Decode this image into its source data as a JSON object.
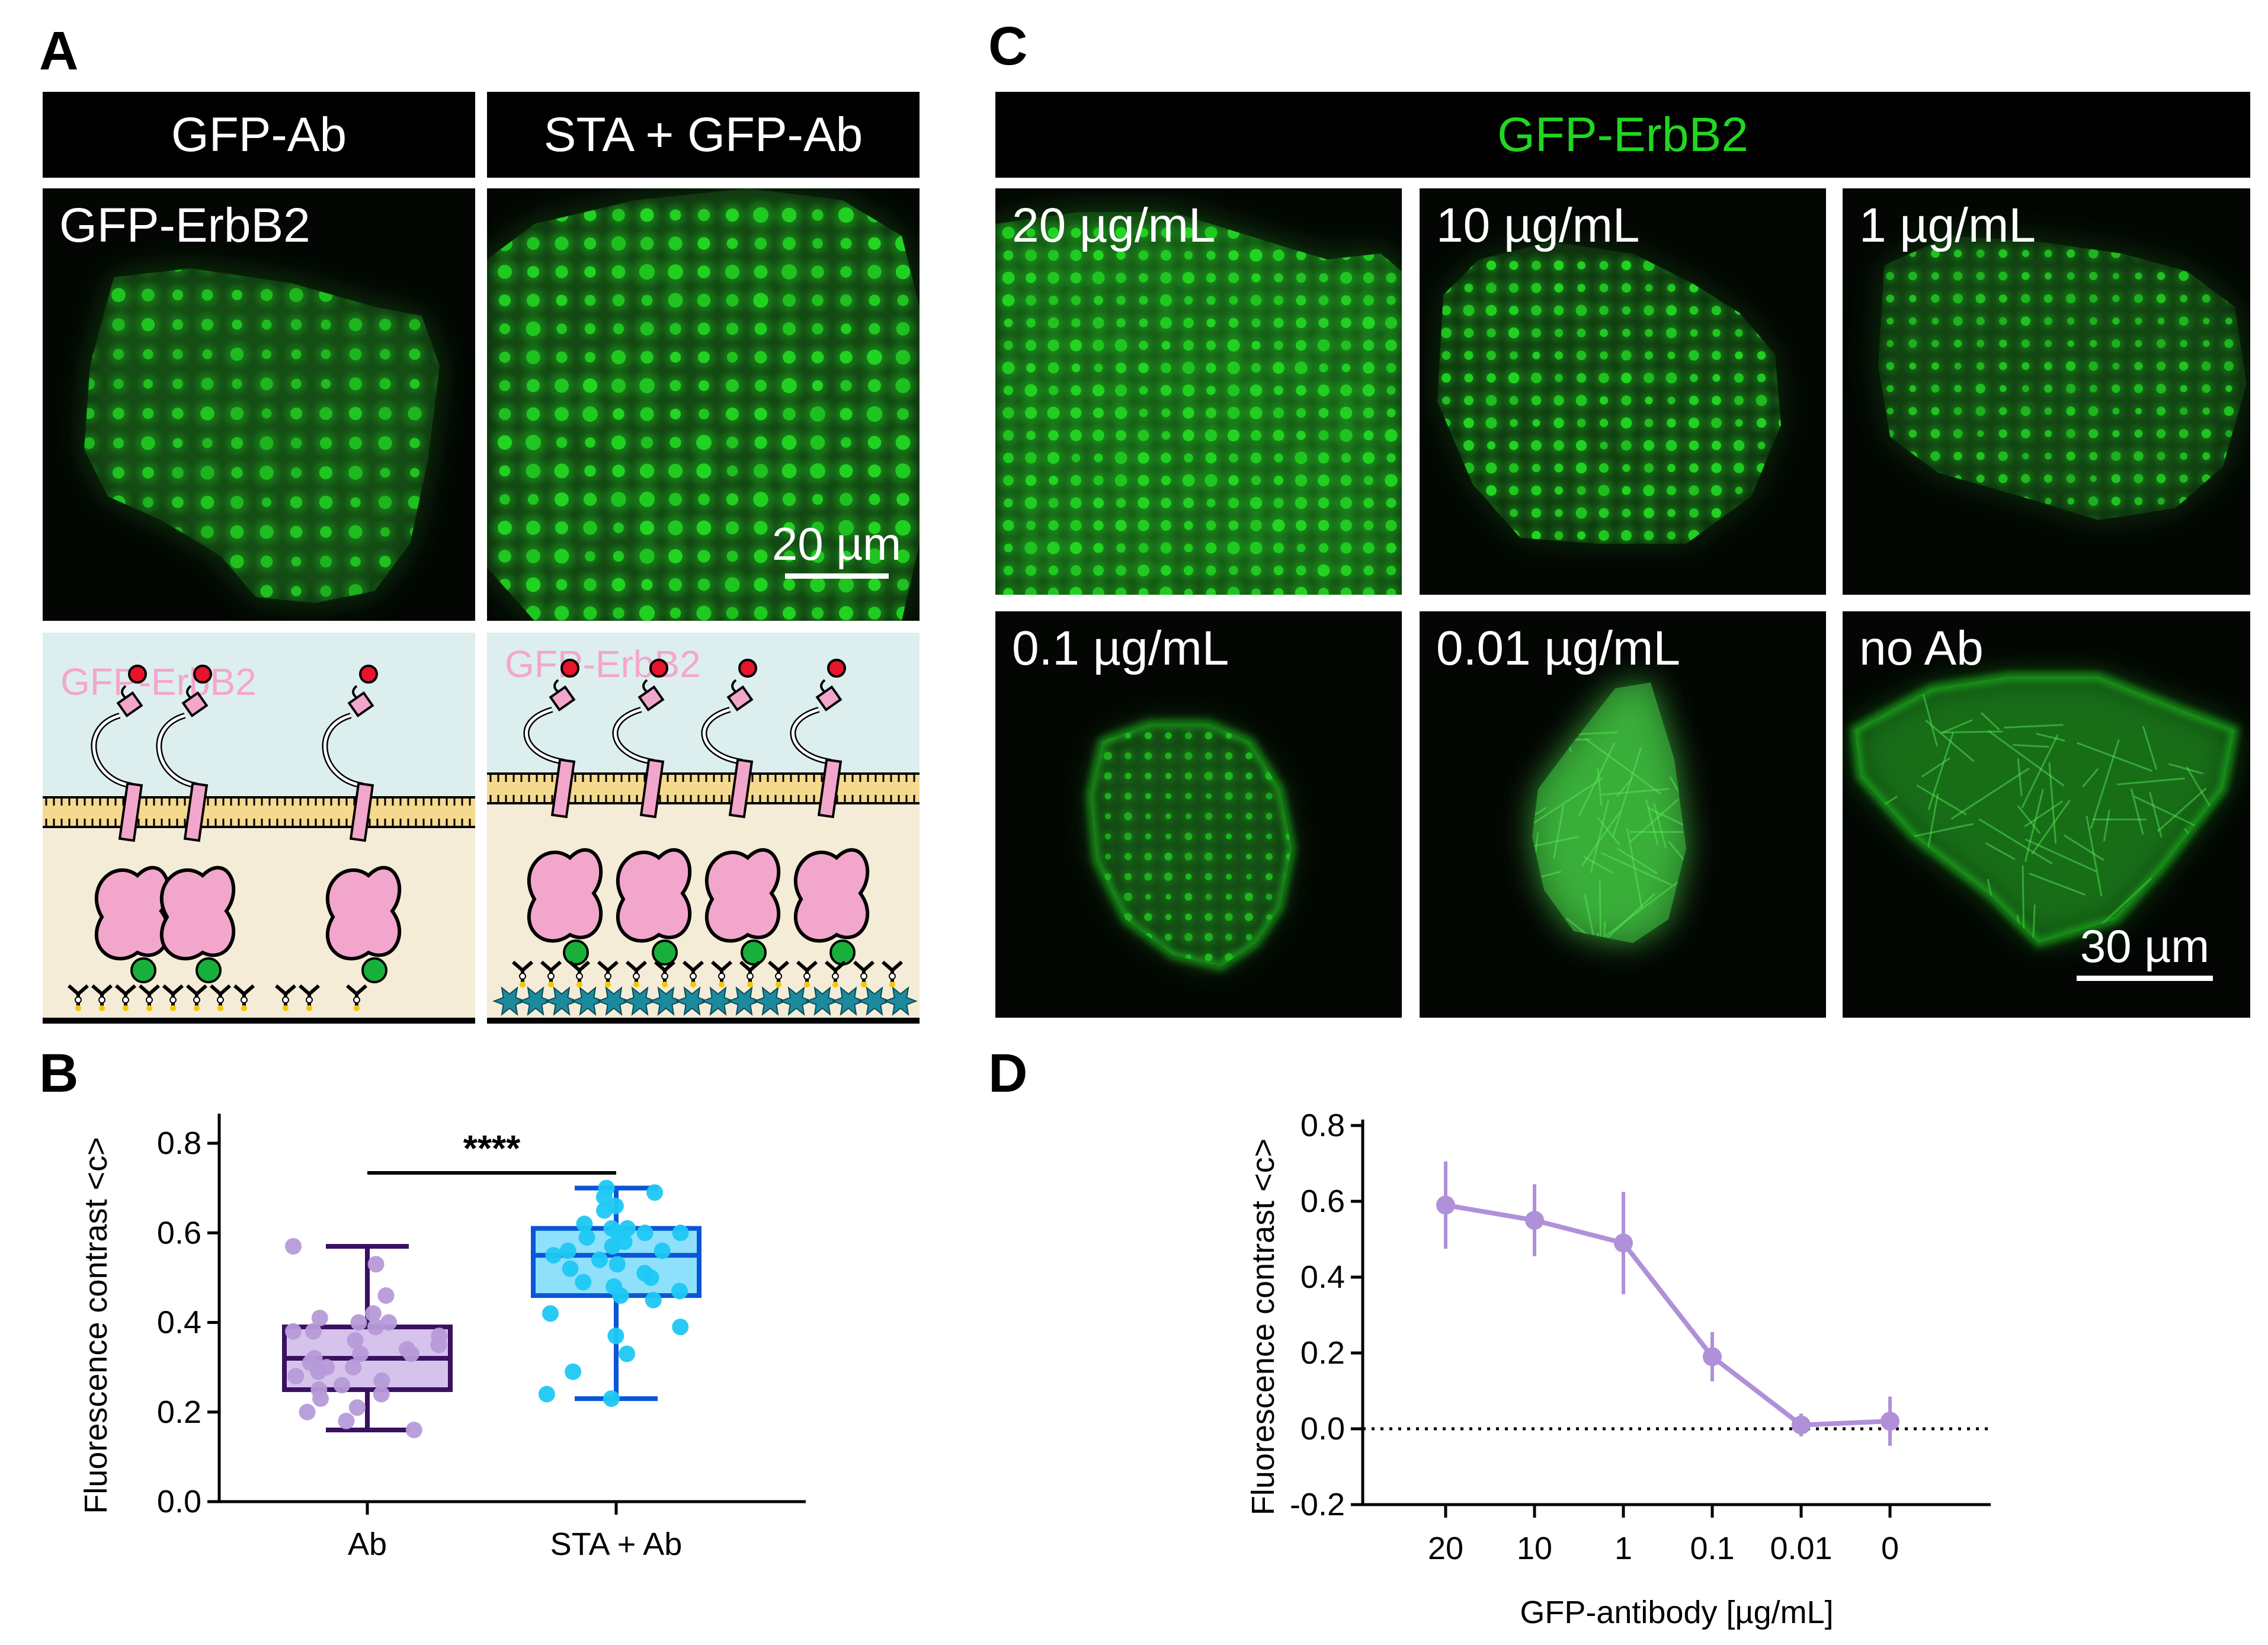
{
  "panels": {
    "a": {
      "letter": "A",
      "headers": [
        "GFP-Ab",
        "STA + GFP-Ab"
      ],
      "micro_label": "GFP-ErbB2",
      "scale_label": "20 µm",
      "schematic_label": "GFP-ErbB2"
    },
    "b": {
      "letter": "B"
    },
    "c": {
      "letter": "C",
      "header": "GFP-ErbB2",
      "tiles": [
        "20 µg/mL",
        "10 µg/mL",
        "1 µg/mL",
        "0.1 µg/mL",
        "0.01 µg/mL",
        "no Ab"
      ],
      "scale_label": "30 µm"
    },
    "d": {
      "letter": "D"
    }
  },
  "colors": {
    "green": "#22d622",
    "purple_light": "#b79ad9",
    "purple_dark": "#3a1060",
    "blue_light": "#1ec8f4",
    "blue_dark": "#0a56d6",
    "line_purple": "#b090d8"
  },
  "chart_data": [
    {
      "type": "box",
      "ylabel": "Fluorescence contrast <c>",
      "ylim": [
        0.0,
        0.8
      ],
      "yticks": [
        "0.0",
        "0.2",
        "0.4",
        "0.6",
        "0.8"
      ],
      "categories": [
        "Ab",
        "STA + Ab"
      ],
      "significance": "****",
      "boxes": [
        {
          "name": "Ab",
          "min": 0.16,
          "q1": 0.25,
          "median": 0.32,
          "q3": 0.39,
          "max": 0.57,
          "points": [
            0.57,
            0.53,
            0.46,
            0.42,
            0.41,
            0.4,
            0.4,
            0.39,
            0.38,
            0.38,
            0.37,
            0.36,
            0.35,
            0.34,
            0.33,
            0.33,
            0.32,
            0.31,
            0.3,
            0.3,
            0.29,
            0.28,
            0.27,
            0.26,
            0.25,
            0.24,
            0.23,
            0.21,
            0.2,
            0.18,
            0.16
          ]
        },
        {
          "name": "STA + Ab",
          "min": 0.23,
          "q1": 0.46,
          "median": 0.55,
          "q3": 0.61,
          "max": 0.7,
          "points": [
            0.7,
            0.69,
            0.68,
            0.66,
            0.65,
            0.62,
            0.61,
            0.61,
            0.6,
            0.6,
            0.6,
            0.59,
            0.58,
            0.57,
            0.56,
            0.56,
            0.55,
            0.54,
            0.53,
            0.52,
            0.51,
            0.5,
            0.49,
            0.48,
            0.47,
            0.46,
            0.45,
            0.42,
            0.39,
            0.37,
            0.33,
            0.29,
            0.24,
            0.23
          ]
        }
      ]
    },
    {
      "type": "line",
      "xlabel": "GFP-antibody [µg/mL]",
      "ylabel": "Fluorescence contrast <c>",
      "categories": [
        "20",
        "10",
        "1",
        "0.1",
        "0.01",
        "0"
      ],
      "ylim": [
        -0.2,
        0.8
      ],
      "yticks": [
        "-0.2",
        "0.0",
        "0.2",
        "0.4",
        "0.6",
        "0.8"
      ],
      "series": [
        {
          "values": [
            0.59,
            0.55,
            0.49,
            0.19,
            0.01,
            0.02
          ],
          "errors": [
            0.115,
            0.095,
            0.135,
            0.065,
            0.03,
            0.065
          ]
        }
      ],
      "reference_line": 0.0
    }
  ]
}
